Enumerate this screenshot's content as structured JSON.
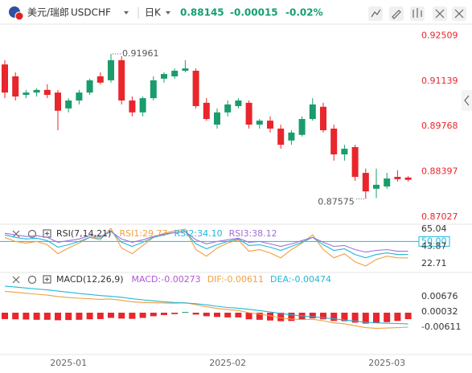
{
  "header": {
    "name": "美元/瑞郎",
    "symbol": "USDCHF",
    "period": "日K",
    "price": "0.88145",
    "change": "-0.00015",
    "change_pct": "-0.02%"
  },
  "chart_data": [
    {
      "type": "candlestick",
      "categories": [
        null,
        null,
        null,
        null,
        null,
        null,
        "2025-01",
        null,
        null,
        null,
        null,
        null,
        null,
        null,
        null,
        null,
        null,
        null,
        null,
        null,
        null,
        "2025-02",
        null,
        null,
        null,
        null,
        null,
        null,
        null,
        null,
        null,
        null,
        null,
        null,
        null,
        null,
        "2025-03",
        null,
        null
      ],
      "open": [
        0.9164,
        0.9128,
        0.9072,
        0.9079,
        0.9087,
        0.9079,
        0.9031,
        0.9055,
        0.9079,
        0.9128,
        0.9116,
        0.9177,
        0.9055,
        0.9019,
        0.9062,
        0.9121,
        0.9128,
        0.9145,
        0.9145,
        0.9048,
        0.8982,
        0.9019,
        0.9038,
        0.9048,
        0.8982,
        0.8994,
        0.897,
        0.8934,
        0.8951,
        0.8999,
        0.9036,
        0.897,
        0.8892,
        0.8914,
        0.8836,
        0.8788,
        0.8795,
        0.8824,
        0.8822
      ],
      "high": [
        0.9177,
        0.914,
        0.9087,
        0.9092,
        0.9104,
        0.9087,
        0.9062,
        0.9087,
        0.9121,
        0.914,
        0.91961,
        0.9189,
        0.9067,
        0.9067,
        0.9128,
        0.914,
        0.9152,
        0.9177,
        0.9152,
        0.9062,
        0.9031,
        0.9055,
        0.9062,
        0.9055,
        0.8999,
        0.9007,
        0.8982,
        0.8965,
        0.9007,
        0.9062,
        0.9048,
        0.8982,
        0.8921,
        0.8921,
        0.8849,
        0.8849,
        0.8836,
        0.8844,
        0.8826
      ],
      "low": [
        0.9062,
        0.9055,
        0.9062,
        0.9067,
        0.9062,
        0.8965,
        0.9019,
        0.9043,
        0.9072,
        0.9104,
        0.9109,
        0.9043,
        0.9007,
        0.9007,
        0.9055,
        0.9109,
        0.9121,
        0.914,
        0.9031,
        0.8994,
        0.897,
        0.9007,
        0.9031,
        0.897,
        0.897,
        0.8958,
        0.8909,
        0.8921,
        0.8946,
        0.8994,
        0.8958,
        0.8873,
        0.8873,
        0.8812,
        0.87575,
        0.876,
        0.8788,
        0.881,
        0.881
      ],
      "close": [
        0.9079,
        0.9067,
        0.9079,
        0.9087,
        0.9072,
        0.9024,
        0.9055,
        0.9079,
        0.9116,
        0.9109,
        0.9177,
        0.9055,
        0.9019,
        0.9062,
        0.9116,
        0.9135,
        0.9145,
        0.9152,
        0.9038,
        0.8999,
        0.9019,
        0.9043,
        0.9055,
        0.8982,
        0.8994,
        0.897,
        0.8921,
        0.8958,
        0.8999,
        0.9043,
        0.8965,
        0.8892,
        0.8909,
        0.8824,
        0.878,
        0.88,
        0.8819,
        0.8817,
        0.8815
      ],
      "up_color": "#1a9c6c",
      "down_color": "#e8262c",
      "ylim": [
        0.8683,
        0.9286
      ],
      "yticks": [
        0.92509,
        0.91139,
        0.89768,
        0.88397,
        0.87027
      ]
    },
    {
      "type": "line",
      "title": "RSI(7,14,21)",
      "series": [
        {
          "name": "RSI1:29.77",
          "color": "#f0a040",
          "values": [
            55,
            50,
            48,
            50,
            46,
            35,
            42,
            48,
            55,
            52,
            66,
            42,
            35,
            45,
            55,
            60,
            63,
            65,
            40,
            32,
            42,
            48,
            52,
            38,
            40,
            36,
            30,
            40,
            48,
            58,
            40,
            30,
            35,
            25,
            20,
            28,
            32,
            30,
            29.77
          ]
        },
        {
          "name": "RSI2:34.10",
          "color": "#22b8d8",
          "values": [
            58,
            55,
            53,
            54,
            51,
            43,
            46,
            50,
            55,
            54,
            63,
            49,
            44,
            49,
            55,
            58,
            61,
            62,
            47,
            41,
            46,
            50,
            53,
            45,
            46,
            43,
            39,
            44,
            49,
            55,
            46,
            39,
            41,
            34,
            30,
            34,
            36,
            34,
            34.1
          ]
        },
        {
          "name": "RSI3:38.12",
          "color": "#a070d8",
          "values": [
            60,
            58,
            56,
            57,
            55,
            49,
            51,
            53,
            57,
            56,
            62,
            53,
            49,
            52,
            56,
            59,
            61,
            62,
            52,
            47,
            50,
            52,
            54,
            49,
            50,
            47,
            44,
            47,
            51,
            55,
            49,
            44,
            45,
            40,
            37,
            39,
            40,
            38,
            38.12
          ]
        }
      ],
      "ylim": [
        13,
        70
      ],
      "yticks": [
        65.04,
        {
          "value": 50,
          "label": "50.00"
        },
        43.87,
        22.71
      ]
    },
    {
      "type": "macd",
      "title": "MACD(12,26,9)",
      "series": [
        {
          "name": "MACD:-0.00273",
          "color": "#b455d8",
          "style": "histogram",
          "values": [
            -0.0027,
            -0.0028,
            -0.0029,
            -0.003,
            -0.003,
            -0.0032,
            -0.0031,
            -0.003,
            -0.0028,
            -0.0027,
            -0.0022,
            -0.0025,
            -0.0026,
            -0.0022,
            -0.0015,
            -0.001,
            -0.0006,
            0.0003,
            -0.0008,
            -0.0015,
            -0.0018,
            -0.002,
            -0.002,
            -0.0028,
            -0.003,
            -0.0033,
            -0.0036,
            -0.0035,
            -0.003,
            -0.0024,
            -0.0028,
            -0.0035,
            -0.0036,
            -0.0042,
            -0.0046,
            -0.0044,
            -0.004,
            -0.0035,
            -0.00273
          ]
        },
        {
          "name": "DIF:-0.00611",
          "color": "#f0a040",
          "values": [
            0.009,
            0.0086,
            0.0082,
            0.0078,
            0.0074,
            0.0068,
            0.0064,
            0.0061,
            0.0059,
            0.0056,
            0.0058,
            0.0052,
            0.0046,
            0.0043,
            0.0042,
            0.0041,
            0.004,
            0.0042,
            0.0034,
            0.0025,
            0.0018,
            0.0013,
            0.0009,
            0.0,
            -0.0006,
            -0.0013,
            -0.0022,
            -0.0027,
            -0.0029,
            -0.0028,
            -0.0034,
            -0.0043,
            -0.0047,
            -0.0055,
            -0.0063,
            -0.0066,
            -0.0065,
            -0.0063,
            -0.00611
          ]
        },
        {
          "name": "DEA:-0.00474",
          "color": "#22b8d8",
          "values": [
            0.0112,
            0.0108,
            0.0104,
            0.01,
            0.0096,
            0.0091,
            0.0086,
            0.0081,
            0.0077,
            0.0072,
            0.0069,
            0.0065,
            0.0059,
            0.0054,
            0.005,
            0.0046,
            0.0043,
            0.0041,
            0.0038,
            0.0033,
            0.0027,
            0.0022,
            0.0019,
            0.0014,
            0.0009,
            0.0003,
            -0.0003,
            -0.0009,
            -0.0014,
            -0.0017,
            -0.0021,
            -0.0026,
            -0.0031,
            -0.0035,
            -0.004,
            -0.0043,
            -0.0045,
            -0.0046,
            -0.00474
          ]
        }
      ],
      "up_color": "#1a9c6c",
      "down_color": "#e8262c",
      "ylim": [
        -0.0173,
        0.0166
      ],
      "yticks": [
        0.00676,
        0.00032,
        -0.00611
      ]
    }
  ]
}
